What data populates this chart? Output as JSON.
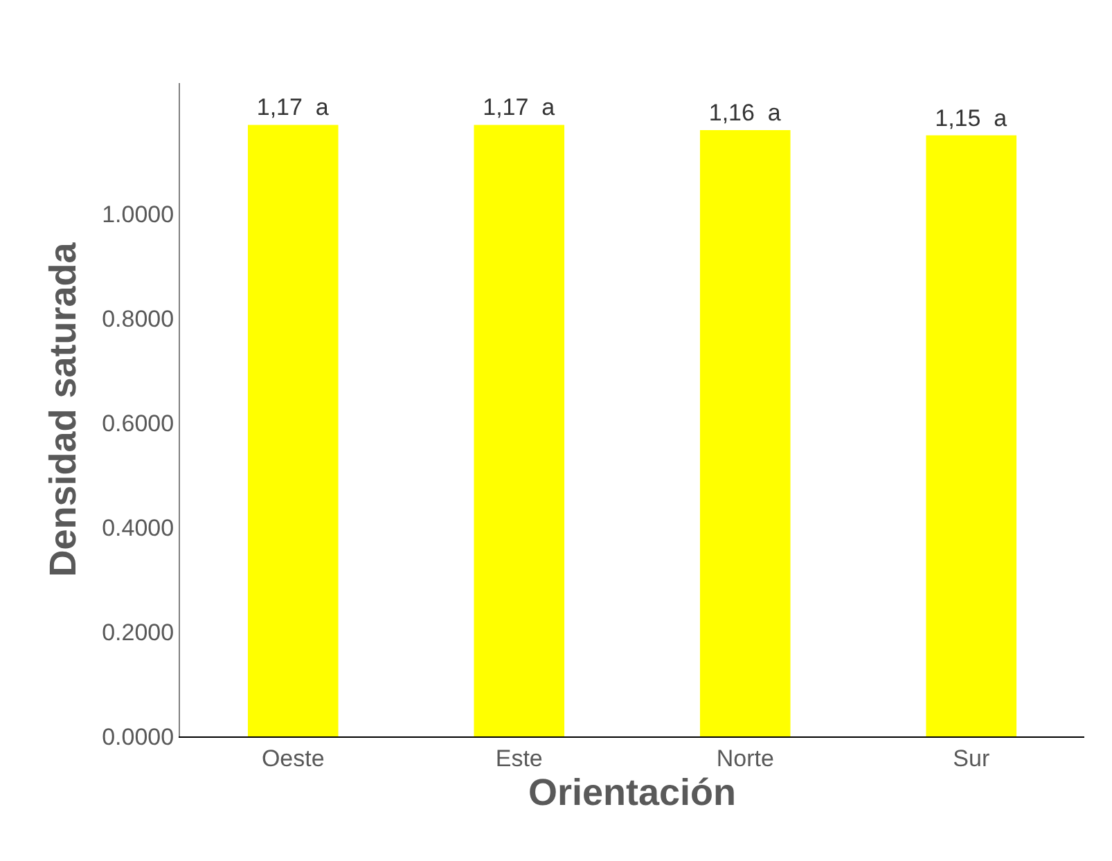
{
  "chart_data": {
    "type": "bar",
    "xlabel": "Orientación",
    "ylabel": "Densidad saturada",
    "categories": [
      "Oeste",
      "Este",
      "Norte",
      "Sur"
    ],
    "values": [
      1.17,
      1.17,
      1.16,
      1.15
    ],
    "value_labels": [
      "1,17  a",
      "1,17  a",
      "1,16  a",
      "1,15  a"
    ],
    "color": "#ffff00",
    "ylim": [
      0,
      1.25
    ],
    "yticks": [
      {
        "value": 0,
        "label": "0.0000"
      },
      {
        "value": 0.2,
        "label": "0.2000"
      },
      {
        "value": 0.4,
        "label": "0.4000"
      },
      {
        "value": 0.6,
        "label": "0.6000"
      },
      {
        "value": 0.8,
        "label": "0.8000"
      },
      {
        "value": 1,
        "label": "1.0000"
      }
    ],
    "grid": false
  }
}
